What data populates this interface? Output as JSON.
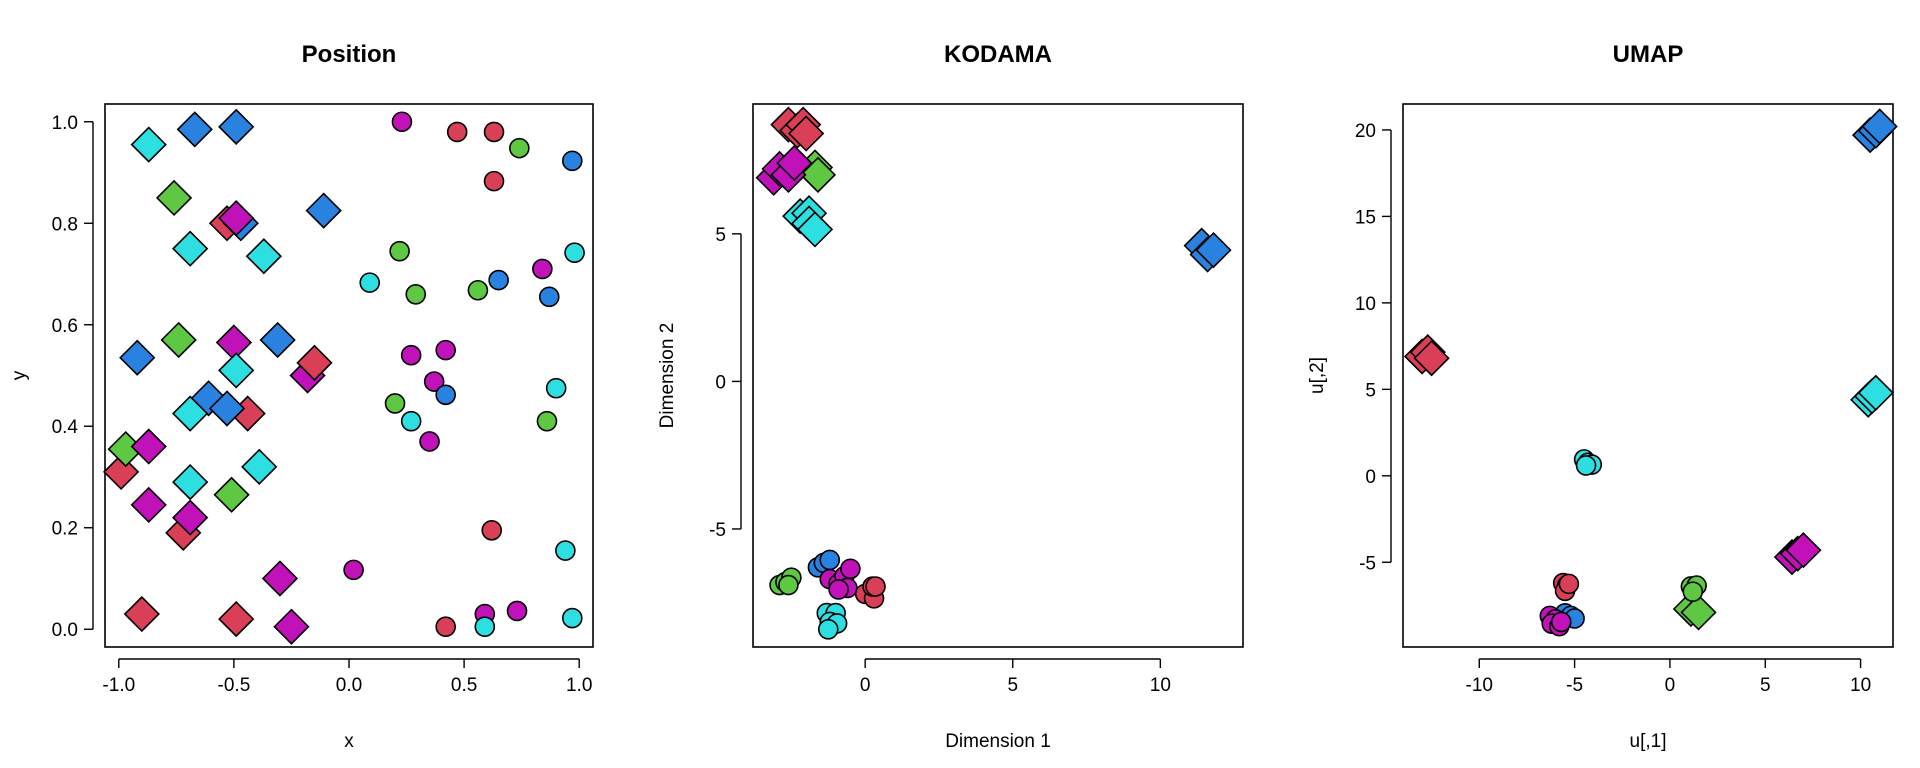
{
  "colors": {
    "red": "#d94058",
    "blue": "#2a82e0",
    "green": "#5ec843",
    "cyan": "#2edfe2",
    "magenta": "#c012b8"
  },
  "chart_data": [
    {
      "type": "scatter",
      "title": "Position",
      "xlabel": "x",
      "ylabel": "y",
      "xlim": [
        -1.06,
        1.06
      ],
      "ylim": [
        -0.035,
        1.035
      ],
      "xticks": [
        -1.0,
        -0.5,
        0.0,
        0.5,
        1.0
      ],
      "xtick_labels": [
        "-1.0",
        "-0.5",
        "0.0",
        "0.5",
        "1.0"
      ],
      "yticks": [
        0.0,
        0.2,
        0.4,
        0.6,
        0.8,
        1.0
      ],
      "ytick_labels": [
        "0.0",
        "0.2",
        "0.4",
        "0.6",
        "0.8",
        "1.0"
      ],
      "grid": false,
      "points": [
        {
          "x": -0.87,
          "y": 0.955,
          "color": "cyan",
          "shape": "diamond"
        },
        {
          "x": -0.67,
          "y": 0.985,
          "color": "blue",
          "shape": "diamond"
        },
        {
          "x": -0.49,
          "y": 0.99,
          "color": "blue",
          "shape": "diamond"
        },
        {
          "x": -0.76,
          "y": 0.85,
          "color": "green",
          "shape": "diamond"
        },
        {
          "x": -0.69,
          "y": 0.75,
          "color": "cyan",
          "shape": "diamond"
        },
        {
          "x": -0.53,
          "y": 0.8,
          "color": "red",
          "shape": "diamond"
        },
        {
          "x": -0.47,
          "y": 0.8,
          "color": "blue",
          "shape": "diamond"
        },
        {
          "x": -0.49,
          "y": 0.81,
          "color": "magenta",
          "shape": "diamond"
        },
        {
          "x": -0.37,
          "y": 0.735,
          "color": "cyan",
          "shape": "diamond"
        },
        {
          "x": -0.11,
          "y": 0.825,
          "color": "blue",
          "shape": "diamond"
        },
        {
          "x": -0.92,
          "y": 0.535,
          "color": "blue",
          "shape": "diamond"
        },
        {
          "x": -0.74,
          "y": 0.57,
          "color": "green",
          "shape": "diamond"
        },
        {
          "x": -0.5,
          "y": 0.565,
          "color": "magenta",
          "shape": "diamond"
        },
        {
          "x": -0.31,
          "y": 0.57,
          "color": "blue",
          "shape": "diamond"
        },
        {
          "x": -0.49,
          "y": 0.51,
          "color": "cyan",
          "shape": "diamond"
        },
        {
          "x": -0.18,
          "y": 0.5,
          "color": "magenta",
          "shape": "diamond"
        },
        {
          "x": -0.15,
          "y": 0.525,
          "color": "red",
          "shape": "diamond"
        },
        {
          "x": -0.61,
          "y": 0.455,
          "color": "blue",
          "shape": "diamond"
        },
        {
          "x": -0.69,
          "y": 0.425,
          "color": "cyan",
          "shape": "diamond"
        },
        {
          "x": -0.44,
          "y": 0.425,
          "color": "red",
          "shape": "diamond"
        },
        {
          "x": -0.53,
          "y": 0.435,
          "color": "blue",
          "shape": "diamond"
        },
        {
          "x": -0.99,
          "y": 0.31,
          "color": "red",
          "shape": "diamond"
        },
        {
          "x": -0.97,
          "y": 0.355,
          "color": "green",
          "shape": "diamond"
        },
        {
          "x": -0.87,
          "y": 0.36,
          "color": "magenta",
          "shape": "diamond"
        },
        {
          "x": -0.69,
          "y": 0.29,
          "color": "cyan",
          "shape": "diamond"
        },
        {
          "x": -0.39,
          "y": 0.32,
          "color": "cyan",
          "shape": "diamond"
        },
        {
          "x": -0.51,
          "y": 0.265,
          "color": "green",
          "shape": "diamond"
        },
        {
          "x": -0.87,
          "y": 0.245,
          "color": "magenta",
          "shape": "diamond"
        },
        {
          "x": -0.72,
          "y": 0.19,
          "color": "red",
          "shape": "diamond"
        },
        {
          "x": -0.69,
          "y": 0.22,
          "color": "magenta",
          "shape": "diamond"
        },
        {
          "x": -0.3,
          "y": 0.1,
          "color": "magenta",
          "shape": "diamond"
        },
        {
          "x": -0.9,
          "y": 0.03,
          "color": "red",
          "shape": "diamond"
        },
        {
          "x": -0.49,
          "y": 0.02,
          "color": "red",
          "shape": "diamond"
        },
        {
          "x": -0.25,
          "y": 0.005,
          "color": "magenta",
          "shape": "diamond"
        },
        {
          "x": 0.23,
          "y": 1.0,
          "color": "magenta",
          "shape": "circle"
        },
        {
          "x": 0.47,
          "y": 0.98,
          "color": "red",
          "shape": "circle"
        },
        {
          "x": 0.63,
          "y": 0.98,
          "color": "red",
          "shape": "circle"
        },
        {
          "x": 0.74,
          "y": 0.948,
          "color": "green",
          "shape": "circle"
        },
        {
          "x": 0.97,
          "y": 0.923,
          "color": "blue",
          "shape": "circle"
        },
        {
          "x": 0.63,
          "y": 0.883,
          "color": "red",
          "shape": "circle"
        },
        {
          "x": 0.22,
          "y": 0.745,
          "color": "green",
          "shape": "circle"
        },
        {
          "x": 0.98,
          "y": 0.742,
          "color": "cyan",
          "shape": "circle"
        },
        {
          "x": 0.84,
          "y": 0.71,
          "color": "magenta",
          "shape": "circle"
        },
        {
          "x": 0.09,
          "y": 0.683,
          "color": "cyan",
          "shape": "circle"
        },
        {
          "x": 0.29,
          "y": 0.66,
          "color": "green",
          "shape": "circle"
        },
        {
          "x": 0.56,
          "y": 0.668,
          "color": "green",
          "shape": "circle"
        },
        {
          "x": 0.65,
          "y": 0.688,
          "color": "blue",
          "shape": "circle"
        },
        {
          "x": 0.87,
          "y": 0.655,
          "color": "blue",
          "shape": "circle"
        },
        {
          "x": 0.27,
          "y": 0.54,
          "color": "magenta",
          "shape": "circle"
        },
        {
          "x": 0.42,
          "y": 0.55,
          "color": "magenta",
          "shape": "circle"
        },
        {
          "x": 0.37,
          "y": 0.488,
          "color": "magenta",
          "shape": "circle"
        },
        {
          "x": 0.42,
          "y": 0.462,
          "color": "blue",
          "shape": "circle"
        },
        {
          "x": 0.9,
          "y": 0.475,
          "color": "cyan",
          "shape": "circle"
        },
        {
          "x": 0.2,
          "y": 0.445,
          "color": "green",
          "shape": "circle"
        },
        {
          "x": 0.27,
          "y": 0.41,
          "color": "cyan",
          "shape": "circle"
        },
        {
          "x": 0.86,
          "y": 0.41,
          "color": "green",
          "shape": "circle"
        },
        {
          "x": 0.35,
          "y": 0.37,
          "color": "magenta",
          "shape": "circle"
        },
        {
          "x": 0.62,
          "y": 0.195,
          "color": "red",
          "shape": "circle"
        },
        {
          "x": 0.94,
          "y": 0.155,
          "color": "cyan",
          "shape": "circle"
        },
        {
          "x": 0.02,
          "y": 0.117,
          "color": "magenta",
          "shape": "circle"
        },
        {
          "x": 0.59,
          "y": 0.03,
          "color": "magenta",
          "shape": "circle"
        },
        {
          "x": 0.73,
          "y": 0.036,
          "color": "magenta",
          "shape": "circle"
        },
        {
          "x": 0.42,
          "y": 0.005,
          "color": "red",
          "shape": "circle"
        },
        {
          "x": 0.59,
          "y": 0.005,
          "color": "cyan",
          "shape": "circle"
        },
        {
          "x": 0.97,
          "y": 0.022,
          "color": "cyan",
          "shape": "circle"
        }
      ]
    },
    {
      "type": "scatter",
      "title": "KODAMA",
      "xlabel": "Dimension 1",
      "ylabel": "Dimension 2",
      "xlim": [
        -3.8,
        12.8
      ],
      "ylim": [
        -9.0,
        9.4
      ],
      "xticks": [
        0,
        5,
        10
      ],
      "xtick_labels": [
        "0",
        "5",
        "10"
      ],
      "yticks": [
        -5,
        0,
        5
      ],
      "ytick_labels": [
        "-5",
        "0",
        "5"
      ],
      "grid": false,
      "points": [
        {
          "x": -2.6,
          "y": 8.7,
          "color": "red",
          "shape": "diamond"
        },
        {
          "x": -2.3,
          "y": 8.5,
          "color": "red",
          "shape": "diamond"
        },
        {
          "x": -2.1,
          "y": 8.7,
          "color": "red",
          "shape": "diamond"
        },
        {
          "x": -2.0,
          "y": 8.4,
          "color": "red",
          "shape": "diamond"
        },
        {
          "x": -1.7,
          "y": 7.25,
          "color": "green",
          "shape": "diamond"
        },
        {
          "x": -1.6,
          "y": 7.0,
          "color": "green",
          "shape": "diamond"
        },
        {
          "x": -3.1,
          "y": 6.9,
          "color": "magenta",
          "shape": "diamond"
        },
        {
          "x": -2.9,
          "y": 7.2,
          "color": "magenta",
          "shape": "diamond"
        },
        {
          "x": -2.6,
          "y": 7.0,
          "color": "magenta",
          "shape": "diamond"
        },
        {
          "x": -2.4,
          "y": 7.4,
          "color": "magenta",
          "shape": "diamond"
        },
        {
          "x": -2.2,
          "y": 5.6,
          "color": "cyan",
          "shape": "diamond"
        },
        {
          "x": -1.9,
          "y": 5.7,
          "color": "cyan",
          "shape": "diamond"
        },
        {
          "x": -1.9,
          "y": 5.35,
          "color": "cyan",
          "shape": "diamond"
        },
        {
          "x": -1.7,
          "y": 5.15,
          "color": "cyan",
          "shape": "diamond"
        },
        {
          "x": 11.4,
          "y": 4.6,
          "color": "blue",
          "shape": "diamond"
        },
        {
          "x": 11.6,
          "y": 4.3,
          "color": "blue",
          "shape": "diamond"
        },
        {
          "x": 11.8,
          "y": 4.45,
          "color": "blue",
          "shape": "diamond"
        },
        {
          "x": -2.9,
          "y": -6.9,
          "color": "green",
          "shape": "circle"
        },
        {
          "x": -2.7,
          "y": -6.8,
          "color": "green",
          "shape": "circle"
        },
        {
          "x": -2.5,
          "y": -6.65,
          "color": "green",
          "shape": "circle"
        },
        {
          "x": -2.6,
          "y": -6.9,
          "color": "green",
          "shape": "circle"
        },
        {
          "x": -1.6,
          "y": -6.3,
          "color": "blue",
          "shape": "circle"
        },
        {
          "x": -1.4,
          "y": -6.15,
          "color": "blue",
          "shape": "circle"
        },
        {
          "x": -1.2,
          "y": -6.05,
          "color": "blue",
          "shape": "circle"
        },
        {
          "x": -1.2,
          "y": -6.7,
          "color": "magenta",
          "shape": "circle"
        },
        {
          "x": -0.9,
          "y": -6.85,
          "color": "magenta",
          "shape": "circle"
        },
        {
          "x": -0.7,
          "y": -6.6,
          "color": "magenta",
          "shape": "circle"
        },
        {
          "x": -0.6,
          "y": -7.0,
          "color": "magenta",
          "shape": "circle"
        },
        {
          "x": -0.5,
          "y": -6.35,
          "color": "magenta",
          "shape": "circle"
        },
        {
          "x": -0.9,
          "y": -7.05,
          "color": "magenta",
          "shape": "circle"
        },
        {
          "x": 0.0,
          "y": -7.2,
          "color": "red",
          "shape": "circle"
        },
        {
          "x": 0.3,
          "y": -7.35,
          "color": "red",
          "shape": "circle"
        },
        {
          "x": 0.25,
          "y": -6.95,
          "color": "red",
          "shape": "circle"
        },
        {
          "x": 0.35,
          "y": -6.95,
          "color": "red",
          "shape": "circle"
        },
        {
          "x": -1.3,
          "y": -7.85,
          "color": "cyan",
          "shape": "circle"
        },
        {
          "x": -1.0,
          "y": -7.85,
          "color": "cyan",
          "shape": "circle"
        },
        {
          "x": -1.2,
          "y": -8.15,
          "color": "cyan",
          "shape": "circle"
        },
        {
          "x": -0.95,
          "y": -8.2,
          "color": "cyan",
          "shape": "circle"
        },
        {
          "x": -1.25,
          "y": -8.4,
          "color": "cyan",
          "shape": "circle"
        }
      ]
    },
    {
      "type": "scatter",
      "title": "UMAP",
      "xlabel": "u[,1]",
      "ylabel": "u[,2]",
      "xlim": [
        -14.0,
        11.7
      ],
      "ylim": [
        -9.9,
        21.5
      ],
      "xticks": [
        -10,
        -5,
        0,
        5,
        10
      ],
      "xtick_labels": [
        "-10",
        "-5",
        "0",
        "5",
        "10"
      ],
      "yticks": [
        -5,
        0,
        5,
        10,
        15,
        20
      ],
      "ytick_labels": [
        "-5",
        "0",
        "5",
        "10",
        "15",
        "20"
      ],
      "grid": false,
      "points": [
        {
          "x": 10.5,
          "y": 19.7,
          "color": "blue",
          "shape": "diamond"
        },
        {
          "x": 10.8,
          "y": 19.95,
          "color": "blue",
          "shape": "diamond"
        },
        {
          "x": 11.0,
          "y": 20.2,
          "color": "blue",
          "shape": "diamond"
        },
        {
          "x": -13.0,
          "y": 6.9,
          "color": "red",
          "shape": "diamond"
        },
        {
          "x": -12.7,
          "y": 7.15,
          "color": "red",
          "shape": "diamond"
        },
        {
          "x": -12.5,
          "y": 6.8,
          "color": "red",
          "shape": "diamond"
        },
        {
          "x": 10.4,
          "y": 4.4,
          "color": "cyan",
          "shape": "diamond"
        },
        {
          "x": 10.6,
          "y": 4.6,
          "color": "cyan",
          "shape": "diamond"
        },
        {
          "x": 10.8,
          "y": 4.8,
          "color": "cyan",
          "shape": "diamond"
        },
        {
          "x": 6.4,
          "y": -4.7,
          "color": "magenta",
          "shape": "diamond"
        },
        {
          "x": 6.7,
          "y": -4.5,
          "color": "magenta",
          "shape": "diamond"
        },
        {
          "x": 7.0,
          "y": -4.3,
          "color": "magenta",
          "shape": "diamond"
        },
        {
          "x": 1.1,
          "y": -7.7,
          "color": "green",
          "shape": "diamond"
        },
        {
          "x": 1.5,
          "y": -7.9,
          "color": "green",
          "shape": "diamond"
        },
        {
          "x": -4.5,
          "y": 0.95,
          "color": "cyan",
          "shape": "circle"
        },
        {
          "x": -4.3,
          "y": 0.75,
          "color": "cyan",
          "shape": "circle"
        },
        {
          "x": -4.1,
          "y": 0.65,
          "color": "cyan",
          "shape": "circle"
        },
        {
          "x": -4.4,
          "y": 0.6,
          "color": "cyan",
          "shape": "circle"
        },
        {
          "x": -5.6,
          "y": -6.2,
          "color": "red",
          "shape": "circle"
        },
        {
          "x": -5.4,
          "y": -6.35,
          "color": "red",
          "shape": "circle"
        },
        {
          "x": -5.5,
          "y": -6.65,
          "color": "red",
          "shape": "circle"
        },
        {
          "x": -5.3,
          "y": -6.25,
          "color": "red",
          "shape": "circle"
        },
        {
          "x": 1.1,
          "y": -6.4,
          "color": "green",
          "shape": "circle"
        },
        {
          "x": 1.4,
          "y": -6.35,
          "color": "green",
          "shape": "circle"
        },
        {
          "x": 1.2,
          "y": -6.7,
          "color": "green",
          "shape": "circle"
        },
        {
          "x": -5.5,
          "y": -7.95,
          "color": "blue",
          "shape": "circle"
        },
        {
          "x": -5.2,
          "y": -8.1,
          "color": "blue",
          "shape": "circle"
        },
        {
          "x": -5.0,
          "y": -8.25,
          "color": "blue",
          "shape": "circle"
        },
        {
          "x": -6.3,
          "y": -8.1,
          "color": "magenta",
          "shape": "circle"
        },
        {
          "x": -6.0,
          "y": -8.3,
          "color": "magenta",
          "shape": "circle"
        },
        {
          "x": -6.2,
          "y": -8.55,
          "color": "magenta",
          "shape": "circle"
        },
        {
          "x": -5.8,
          "y": -8.7,
          "color": "magenta",
          "shape": "circle"
        },
        {
          "x": -5.7,
          "y": -8.45,
          "color": "magenta",
          "shape": "circle"
        }
      ]
    }
  ]
}
